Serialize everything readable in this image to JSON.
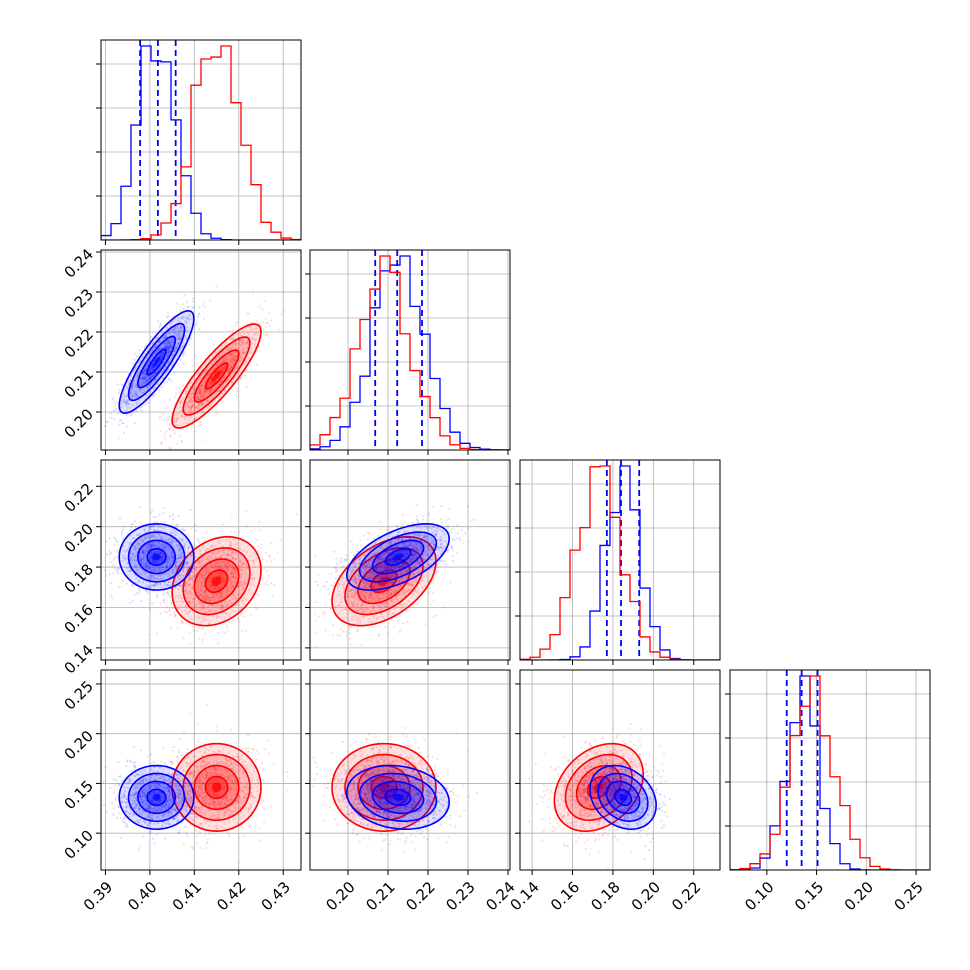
{
  "chart_data": {
    "type": "corner",
    "grid": true,
    "parameters": [
      {
        "range": [
          0.389,
          0.434
        ],
        "ticks": [
          0.39,
          0.4,
          0.41,
          0.42,
          0.43
        ],
        "tick_labels": [
          "0.39",
          "0.40",
          "0.41",
          "0.42",
          "0.43"
        ]
      },
      {
        "range": [
          0.1905,
          0.2405
        ],
        "ticks": [
          0.2,
          0.21,
          0.22,
          0.23,
          0.24
        ],
        "tick_labels": [
          "0.20",
          "0.21",
          "0.22",
          "0.23",
          "0.24"
        ]
      },
      {
        "range": [
          0.134,
          0.233
        ],
        "ticks": [
          0.14,
          0.16,
          0.18,
          0.2,
          0.22
        ],
        "tick_labels": [
          "0.14",
          "0.16",
          "0.18",
          "0.20",
          "0.22"
        ]
      },
      {
        "range": [
          0.063,
          0.264
        ],
        "ticks": [
          0.1,
          0.15,
          0.2,
          0.25
        ],
        "tick_labels": [
          "0.10",
          "0.15",
          "0.20",
          "0.25"
        ]
      }
    ],
    "series": [
      {
        "color": "#0000ff",
        "means": [
          0.4015,
          0.2125,
          0.185,
          0.136
        ],
        "sigmas": [
          0.0042,
          0.0064,
          0.0082,
          0.016
        ],
        "quantiles": [
          [
            0.3978,
            0.4018,
            0.4058
          ],
          [
            0.2068,
            0.2123,
            0.2185
          ],
          [
            0.177,
            0.184,
            0.193
          ],
          [
            0.12,
            0.135,
            0.151
          ]
        ],
        "correlations": {
          "0-1": 0.85,
          "0-2": 0.0,
          "0-3": 0.0,
          "1-2": 0.55,
          "1-3": -0.15,
          "2-3": -0.25
        }
      },
      {
        "color": "#ff0000",
        "means": [
          0.415,
          0.209,
          0.173,
          0.146
        ],
        "sigmas": [
          0.005,
          0.0065,
          0.011,
          0.022
        ],
        "correlations": {
          "0-1": 0.85,
          "0-2": 0.25,
          "0-3": 0.0,
          "1-2": 0.45,
          "1-3": 0.0,
          "2-3": 0.3
        }
      }
    ]
  }
}
